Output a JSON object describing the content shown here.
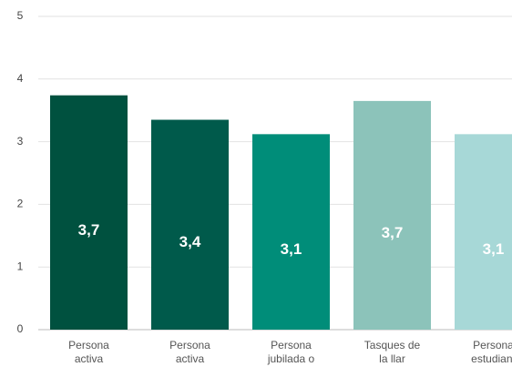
{
  "chart_data": {
    "type": "bar",
    "categories": [
      "Persona activa",
      "Persona activa",
      "Persona jubilada o",
      "Tasques de la llar",
      "Persona estudiant"
    ],
    "values": [
      3.74,
      3.35,
      3.12,
      3.65,
      3.12
    ],
    "value_labels": [
      "3,7",
      "3,4",
      "3,1",
      "3,7",
      "3,1"
    ],
    "colors": [
      "#00513f",
      "#005a4b",
      "#008d79",
      "#8cc3ba",
      "#a7d8d7"
    ],
    "ylim": [
      0,
      5
    ],
    "yticks": [
      0,
      1,
      2,
      3,
      4,
      5
    ],
    "grid": true
  }
}
